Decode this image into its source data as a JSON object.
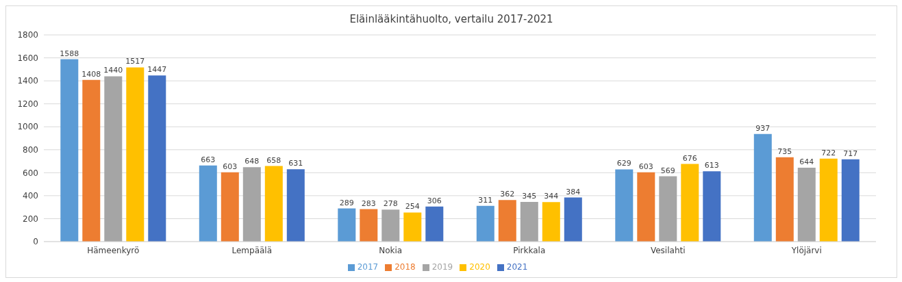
{
  "chart_data": {
    "type": "bar",
    "title": "Eläinlääkintähuolto, vertailu 2017-2021",
    "categories": [
      "Hämeenkyrö",
      "Lempäälä",
      "Nokia",
      "Pirkkala",
      "Vesilahti",
      "Ylöjärvi"
    ],
    "series": [
      {
        "name": "2017",
        "color": "#5b9bd5",
        "values": [
          1588,
          663,
          289,
          311,
          629,
          937
        ]
      },
      {
        "name": "2018",
        "color": "#ed7d31",
        "values": [
          1408,
          603,
          283,
          362,
          603,
          735
        ]
      },
      {
        "name": "2019",
        "color": "#a5a5a5",
        "values": [
          1440,
          648,
          278,
          345,
          569,
          644
        ]
      },
      {
        "name": "2020",
        "color": "#ffc000",
        "values": [
          1517,
          658,
          254,
          344,
          676,
          722
        ]
      },
      {
        "name": "2021",
        "color": "#4472c4",
        "values": [
          1447,
          631,
          306,
          384,
          613,
          717
        ]
      }
    ],
    "ylim": [
      0,
      1800
    ],
    "yticks": [
      0,
      200,
      400,
      600,
      800,
      1000,
      1200,
      1400,
      1600,
      1800
    ],
    "grid": "y",
    "legend": "bottom",
    "data_labels": true
  }
}
